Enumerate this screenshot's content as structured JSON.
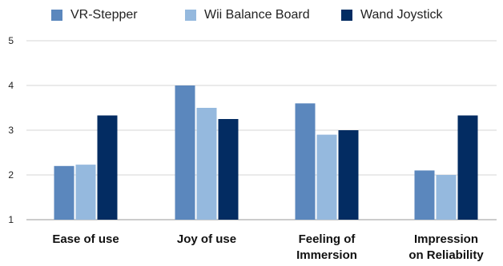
{
  "chart_data": {
    "type": "bar",
    "title": "",
    "xlabel": "",
    "ylabel": "",
    "ylim": [
      1,
      5
    ],
    "yticks": [
      1,
      2,
      3,
      4,
      5
    ],
    "grid": true,
    "legend_position": "top",
    "categories": [
      [
        "Ease of use"
      ],
      [
        "Joy of use"
      ],
      [
        "Feeling of",
        "Immersion"
      ],
      [
        "Impression",
        "on Reliability"
      ]
    ],
    "series": [
      {
        "name": "VR-Stepper",
        "color": "#5b87bd",
        "values": [
          2.2,
          4.0,
          3.6,
          2.1
        ]
      },
      {
        "name": "Wii Balance Board",
        "color": "#95b9de",
        "values": [
          2.23,
          3.5,
          2.9,
          2.0
        ]
      },
      {
        "name": "Wand Joystick",
        "color": "#032c62",
        "values": [
          3.33,
          3.25,
          3.0,
          3.33
        ]
      }
    ]
  }
}
